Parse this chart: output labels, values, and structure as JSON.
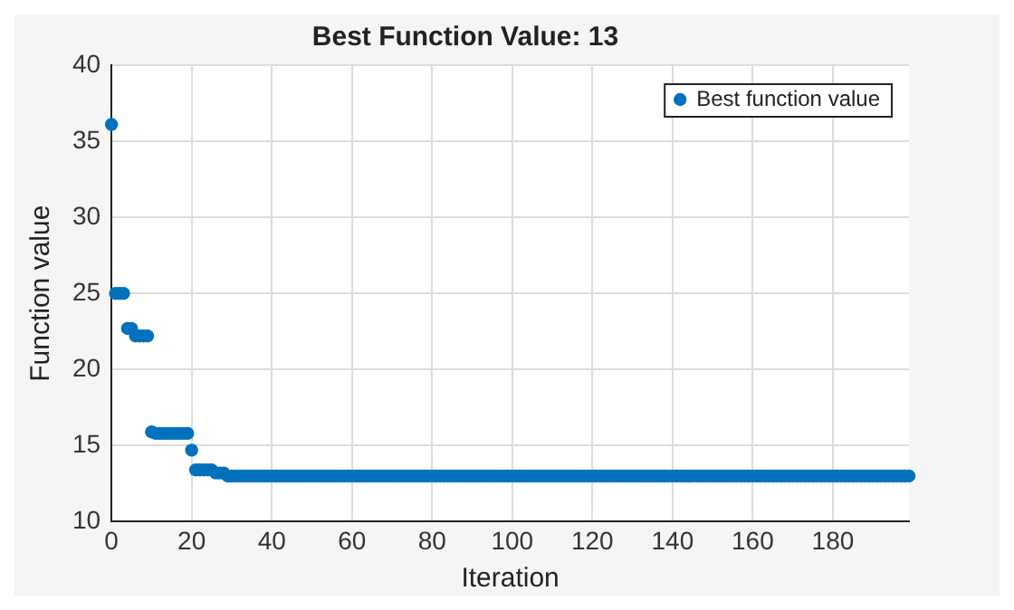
{
  "chart_data": {
    "type": "scatter",
    "title": "Best Function Value: 13",
    "xlabel": "Iteration",
    "ylabel": "Function value",
    "x": [
      0,
      1,
      2,
      3,
      4,
      5,
      6,
      7,
      8,
      9,
      10,
      11,
      12,
      13,
      14,
      15,
      16,
      17,
      18,
      19,
      20,
      21,
      22,
      23,
      24,
      25,
      26,
      27,
      28,
      29,
      30,
      31,
      32,
      33,
      34,
      35,
      36,
      37,
      38,
      39,
      40,
      41,
      42,
      43,
      44,
      45,
      46,
      47,
      48,
      49,
      50,
      51,
      52,
      53,
      54,
      55,
      56,
      57,
      58,
      59,
      60,
      61,
      62,
      63,
      64,
      65,
      66,
      67,
      68,
      69,
      70,
      71,
      72,
      73,
      74,
      75,
      76,
      77,
      78,
      79,
      80,
      81,
      82,
      83,
      84,
      85,
      86,
      87,
      88,
      89,
      90,
      91,
      92,
      93,
      94,
      95,
      96,
      97,
      98,
      99,
      100,
      101,
      102,
      103,
      104,
      105,
      106,
      107,
      108,
      109,
      110,
      111,
      112,
      113,
      114,
      115,
      116,
      117,
      118,
      119,
      120,
      121,
      122,
      123,
      124,
      125,
      126,
      127,
      128,
      129,
      130,
      131,
      132,
      133,
      134,
      135,
      136,
      137,
      138,
      139,
      140,
      141,
      142,
      143,
      144,
      145,
      146,
      147,
      148,
      149,
      150,
      151,
      152,
      153,
      154,
      155,
      156,
      157,
      158,
      159,
      160,
      161,
      162,
      163,
      164,
      165,
      166,
      167,
      168,
      169,
      170,
      171,
      172,
      173,
      174,
      175,
      176,
      177,
      178,
      179,
      180,
      181,
      182,
      183,
      184,
      185,
      186,
      187,
      188,
      189,
      190,
      191,
      192,
      193,
      194,
      195,
      196,
      197,
      198,
      199
    ],
    "series": [
      {
        "name": "Best function value",
        "color": "#0072bd",
        "values": [
          36.1,
          25,
          25,
          25,
          22.7,
          22.7,
          22.2,
          22.2,
          22.2,
          22.2,
          15.9,
          15.8,
          15.8,
          15.8,
          15.8,
          15.8,
          15.8,
          15.8,
          15.8,
          15.8,
          14.7,
          13.4,
          13.4,
          13.4,
          13.4,
          13.4,
          13.2,
          13.2,
          13.2,
          13,
          13,
          13,
          13,
          13,
          13,
          13,
          13,
          13,
          13,
          13,
          13,
          13,
          13,
          13,
          13,
          13,
          13,
          13,
          13,
          13,
          13,
          13,
          13,
          13,
          13,
          13,
          13,
          13,
          13,
          13,
          13,
          13,
          13,
          13,
          13,
          13,
          13,
          13,
          13,
          13,
          13,
          13,
          13,
          13,
          13,
          13,
          13,
          13,
          13,
          13,
          13,
          13,
          13,
          13,
          13,
          13,
          13,
          13,
          13,
          13,
          13,
          13,
          13,
          13,
          13,
          13,
          13,
          13,
          13,
          13,
          13,
          13,
          13,
          13,
          13,
          13,
          13,
          13,
          13,
          13,
          13,
          13,
          13,
          13,
          13,
          13,
          13,
          13,
          13,
          13,
          13,
          13,
          13,
          13,
          13,
          13,
          13,
          13,
          13,
          13,
          13,
          13,
          13,
          13,
          13,
          13,
          13,
          13,
          13,
          13,
          13,
          13,
          13,
          13,
          13,
          13,
          13,
          13,
          13,
          13,
          13,
          13,
          13,
          13,
          13,
          13,
          13,
          13,
          13,
          13,
          13,
          13,
          13,
          13,
          13,
          13,
          13,
          13,
          13,
          13,
          13,
          13,
          13,
          13,
          13,
          13,
          13,
          13,
          13,
          13,
          13,
          13,
          13,
          13,
          13,
          13,
          13,
          13,
          13,
          13,
          13,
          13,
          13,
          13,
          13,
          13,
          13,
          13,
          13,
          13
        ]
      }
    ],
    "xlim": [
      0,
      199
    ],
    "xticks": [
      0,
      20,
      40,
      60,
      80,
      100,
      120,
      140,
      160,
      180
    ],
    "ylim": [
      10,
      40
    ],
    "yticks": [
      10,
      15,
      20,
      25,
      30,
      35,
      40
    ],
    "grid": true,
    "legend": "top right",
    "marker": "circle"
  }
}
